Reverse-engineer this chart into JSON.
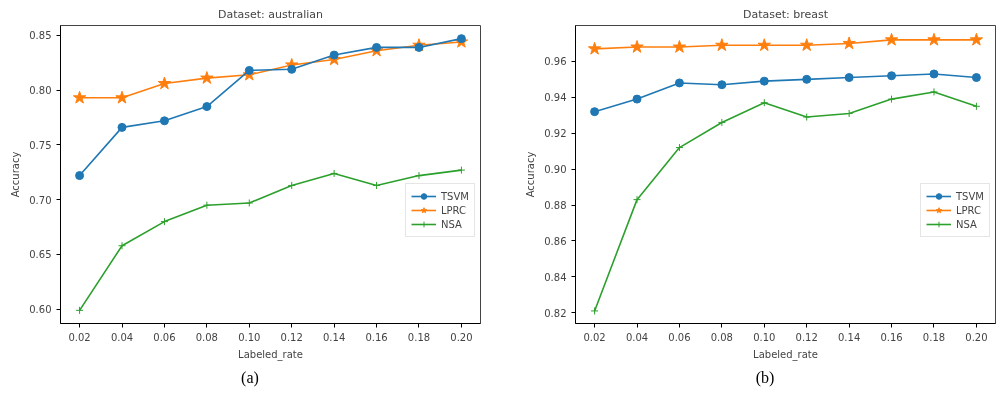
{
  "chart_data": [
    {
      "type": "line",
      "title": "Dataset: australian",
      "xlabel": "Labeled_rate",
      "ylabel": "Accuracy",
      "annotations": [
        "(a)"
      ],
      "x": [
        0.02,
        0.04,
        0.06,
        0.08,
        0.1,
        0.12,
        0.14,
        0.16,
        0.18,
        0.2
      ],
      "xlim": [
        0.011,
        0.209
      ],
      "ylim": [
        0.587,
        0.859
      ],
      "xticks": [
        {
          "value": 0.02,
          "label": "0.02"
        },
        {
          "value": 0.04,
          "label": "0.04"
        },
        {
          "value": 0.06,
          "label": "0.06"
        },
        {
          "value": 0.08,
          "label": "0.08"
        },
        {
          "value": 0.1,
          "label": "0.10"
        },
        {
          "value": 0.12,
          "label": "0.12"
        },
        {
          "value": 0.14,
          "label": "0.14"
        },
        {
          "value": 0.16,
          "label": "0.16"
        },
        {
          "value": 0.18,
          "label": "0.18"
        },
        {
          "value": 0.2,
          "label": "0.20"
        }
      ],
      "yticks": [
        {
          "value": 0.6,
          "label": "0.60"
        },
        {
          "value": 0.65,
          "label": "0.65"
        },
        {
          "value": 0.7,
          "label": "0.70"
        },
        {
          "value": 0.75,
          "label": "0.75"
        },
        {
          "value": 0.8,
          "label": "0.80"
        },
        {
          "value": 0.85,
          "label": "0.85"
        }
      ],
      "legend": "right",
      "grid": false,
      "series": [
        {
          "name": "TSVM",
          "color": "#1f77b4",
          "marker": "circle",
          "values": [
            0.722,
            0.766,
            0.772,
            0.785,
            0.818,
            0.819,
            0.832,
            0.839,
            0.839,
            0.847
          ]
        },
        {
          "name": "LPRC",
          "color": "#ff7f0e",
          "marker": "star",
          "values": [
            0.793,
            0.793,
            0.806,
            0.811,
            0.814,
            0.823,
            0.828,
            0.836,
            0.841,
            0.844
          ]
        },
        {
          "name": "NSA",
          "color": "#2ca02c",
          "marker": "cross",
          "values": [
            0.599,
            0.658,
            0.68,
            0.695,
            0.697,
            0.713,
            0.724,
            0.713,
            0.722,
            0.727
          ]
        }
      ]
    },
    {
      "type": "line",
      "title": "Dataset: breast",
      "xlabel": "Labeled_rate",
      "ylabel": "Accuracy",
      "annotations": [
        "(b)"
      ],
      "x": [
        0.02,
        0.04,
        0.06,
        0.08,
        0.1,
        0.12,
        0.14,
        0.16,
        0.18,
        0.2
      ],
      "xlim": [
        0.011,
        0.209
      ],
      "ylim": [
        0.814,
        0.98
      ],
      "xticks": [
        {
          "value": 0.02,
          "label": "0.02"
        },
        {
          "value": 0.04,
          "label": "0.04"
        },
        {
          "value": 0.06,
          "label": "0.06"
        },
        {
          "value": 0.08,
          "label": "0.08"
        },
        {
          "value": 0.1,
          "label": "0.10"
        },
        {
          "value": 0.12,
          "label": "0.12"
        },
        {
          "value": 0.14,
          "label": "0.14"
        },
        {
          "value": 0.16,
          "label": "0.16"
        },
        {
          "value": 0.18,
          "label": "0.18"
        },
        {
          "value": 0.2,
          "label": "0.20"
        }
      ],
      "yticks": [
        {
          "value": 0.82,
          "label": "0.82"
        },
        {
          "value": 0.84,
          "label": "0.84"
        },
        {
          "value": 0.86,
          "label": "0.86"
        },
        {
          "value": 0.88,
          "label": "0.88"
        },
        {
          "value": 0.9,
          "label": "0.90"
        },
        {
          "value": 0.92,
          "label": "0.92"
        },
        {
          "value": 0.94,
          "label": "0.94"
        },
        {
          "value": 0.96,
          "label": "0.96"
        }
      ],
      "legend": "right",
      "grid": false,
      "series": [
        {
          "name": "TSVM",
          "color": "#1f77b4",
          "marker": "circle",
          "values": [
            0.932,
            0.939,
            0.948,
            0.947,
            0.949,
            0.95,
            0.951,
            0.952,
            0.953,
            0.951
          ]
        },
        {
          "name": "LPRC",
          "color": "#ff7f0e",
          "marker": "star",
          "values": [
            0.967,
            0.968,
            0.968,
            0.969,
            0.969,
            0.969,
            0.97,
            0.972,
            0.972,
            0.972
          ]
        },
        {
          "name": "NSA",
          "color": "#2ca02c",
          "marker": "cross",
          "values": [
            0.821,
            0.883,
            0.912,
            0.926,
            0.937,
            0.929,
            0.931,
            0.939,
            0.943,
            0.935
          ]
        }
      ]
    }
  ]
}
